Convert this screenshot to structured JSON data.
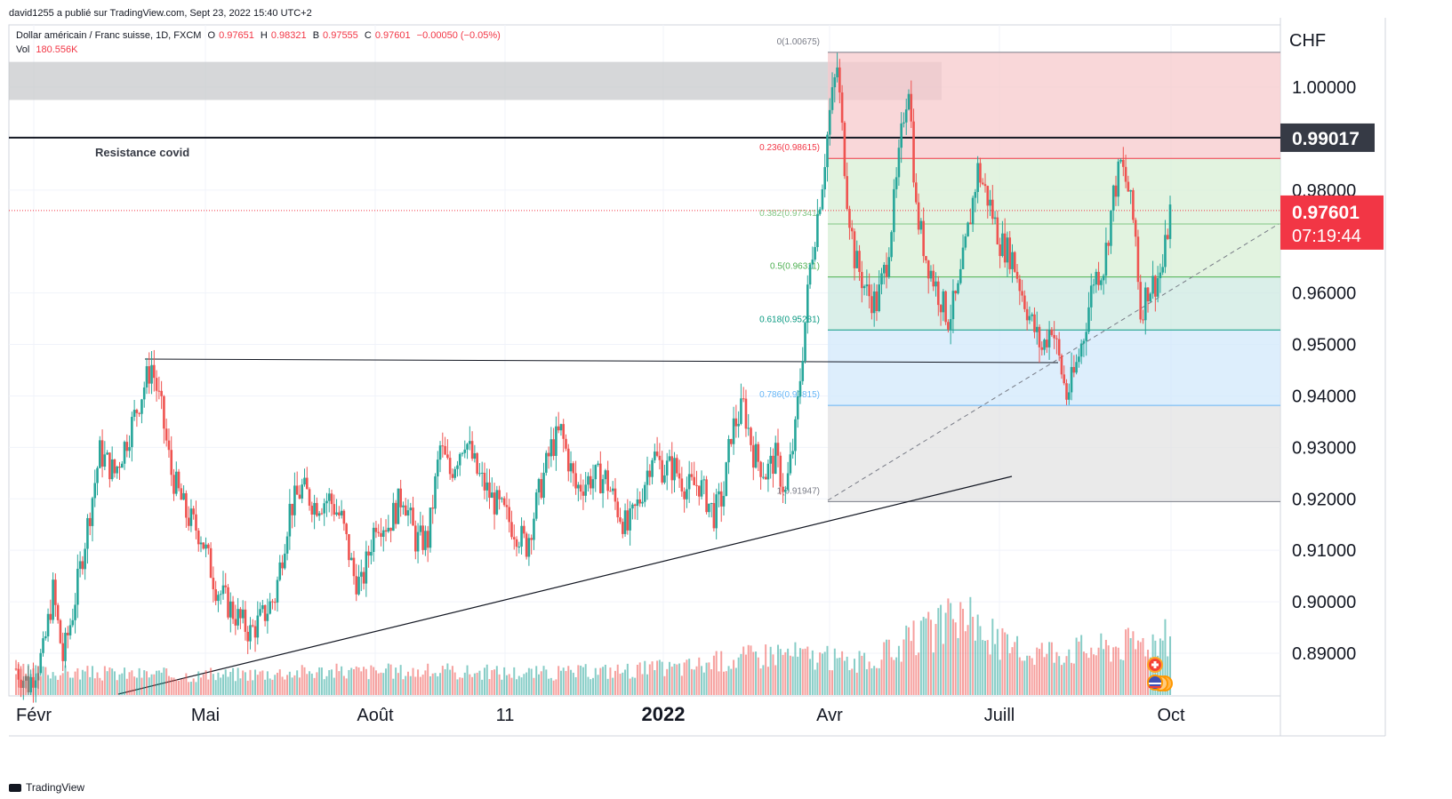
{
  "header": {
    "publish_line": "david1255 a publié sur TradingView.com, Sept 23, 2022 15:40 UTC+2",
    "symbol_line": "Dollar américain / Franc suisse, 1D, FXCM",
    "ohlc": {
      "o_label": "O",
      "o_value": "0.97651",
      "h_label": "H",
      "h_value": "0.98321",
      "b_label": "B",
      "b_value": "0.97555",
      "c_label": "C",
      "c_value": "0.97601",
      "change": "−0.00050 (−0.05%)"
    },
    "volume_label": "Vol",
    "volume_value": "180.556K"
  },
  "footer": {
    "brand": "TradingView"
  },
  "colors": {
    "up": "#26a69a",
    "down": "#ef5350",
    "fib_red_zone": "#f7c9cc",
    "fib_green_zone": "#d8efd6",
    "fib_teal_zone": "#cde9e1",
    "fib_blue_zone": "#d2e8fb",
    "fib_grey_zone": "#e3e3e3",
    "covid_box": "#c8c9cc",
    "price_tag": "#f23645",
    "resistance_tag": "#363a45"
  },
  "chart_data": {
    "type": "candlestick",
    "title": "Dollar américain / Franc suisse, 1D, FXCM",
    "currency": "CHF",
    "x_ticks": [
      "Févr",
      "Mai",
      "Août",
      "11",
      "2022",
      "Avr",
      "Juill",
      "Oct"
    ],
    "x_ticks_bold": [
      "2022"
    ],
    "y_ticks": [
      "1.00000",
      "0.98000",
      "0.96000",
      "0.95000",
      "0.94000",
      "0.93000",
      "0.92000",
      "0.91000",
      "0.90000",
      "0.89000"
    ],
    "ylim": [
      0.8835,
      1.009
    ],
    "grid": true,
    "last_price": "0.97601",
    "countdown": "07:19:44",
    "resistance": {
      "value": 0.99017,
      "label": "0.99017",
      "text": "Resistance covid"
    },
    "fibonacci": [
      {
        "level": "0",
        "price": 1.00675,
        "label": "0(1.00675)"
      },
      {
        "level": "0.236",
        "price": 0.98615,
        "label": "0.236(0.98615)"
      },
      {
        "level": "0.382",
        "price": 0.97341,
        "label": "0.382(0.97341)"
      },
      {
        "level": "0.5",
        "price": 0.96311,
        "label": "0.5(0.96311)"
      },
      {
        "level": "0.618",
        "price": 0.95281,
        "label": "0.618(0.95281)"
      },
      {
        "level": "0.786",
        "price": 0.93815,
        "label": "0.786(0.93815)"
      },
      {
        "level": "1",
        "price": 0.91947,
        "label": "1(0.91947)"
      }
    ],
    "path_points": [
      {
        "d": 0,
        "p": 0.887
      },
      {
        "d": 10,
        "p": 0.884
      },
      {
        "d": 22,
        "p": 0.89
      },
      {
        "d": 30,
        "p": 0.902
      },
      {
        "d": 38,
        "p": 0.889
      },
      {
        "d": 46,
        "p": 0.898
      },
      {
        "d": 56,
        "p": 0.912
      },
      {
        "d": 68,
        "p": 0.929
      },
      {
        "d": 80,
        "p": 0.925
      },
      {
        "d": 92,
        "p": 0.933
      },
      {
        "d": 104,
        "p": 0.942
      },
      {
        "d": 110,
        "p": 0.946
      },
      {
        "d": 118,
        "p": 0.937
      },
      {
        "d": 126,
        "p": 0.925
      },
      {
        "d": 138,
        "p": 0.917
      },
      {
        "d": 150,
        "p": 0.913
      },
      {
        "d": 162,
        "p": 0.903
      },
      {
        "d": 176,
        "p": 0.898
      },
      {
        "d": 190,
        "p": 0.894
      },
      {
        "d": 200,
        "p": 0.897
      },
      {
        "d": 210,
        "p": 0.901
      },
      {
        "d": 222,
        "p": 0.918
      },
      {
        "d": 232,
        "p": 0.922
      },
      {
        "d": 242,
        "p": 0.919
      },
      {
        "d": 254,
        "p": 0.92
      },
      {
        "d": 264,
        "p": 0.916
      },
      {
        "d": 274,
        "p": 0.905
      },
      {
        "d": 280,
        "p": 0.903
      },
      {
        "d": 292,
        "p": 0.916
      },
      {
        "d": 302,
        "p": 0.915
      },
      {
        "d": 314,
        "p": 0.921
      },
      {
        "d": 324,
        "p": 0.912
      },
      {
        "d": 334,
        "p": 0.912
      },
      {
        "d": 344,
        "p": 0.93
      },
      {
        "d": 352,
        "p": 0.925
      },
      {
        "d": 364,
        "p": 0.932
      },
      {
        "d": 374,
        "p": 0.925
      },
      {
        "d": 386,
        "p": 0.92
      },
      {
        "d": 396,
        "p": 0.917
      },
      {
        "d": 408,
        "p": 0.913
      },
      {
        "d": 414,
        "p": 0.911
      },
      {
        "d": 424,
        "p": 0.921
      },
      {
        "d": 434,
        "p": 0.93
      },
      {
        "d": 442,
        "p": 0.933
      },
      {
        "d": 454,
        "p": 0.922
      },
      {
        "d": 466,
        "p": 0.924
      },
      {
        "d": 478,
        "p": 0.924
      },
      {
        "d": 488,
        "p": 0.918
      },
      {
        "d": 496,
        "p": 0.914
      },
      {
        "d": 506,
        "p": 0.92
      },
      {
        "d": 516,
        "p": 0.929
      },
      {
        "d": 524,
        "p": 0.926
      },
      {
        "d": 534,
        "p": 0.926
      },
      {
        "d": 544,
        "p": 0.922
      },
      {
        "d": 554,
        "p": 0.923
      },
      {
        "d": 566,
        "p": 0.917
      },
      {
        "d": 574,
        "p": 0.921
      },
      {
        "d": 580,
        "p": 0.933
      },
      {
        "d": 590,
        "p": 0.938
      },
      {
        "d": 598,
        "p": 0.929
      },
      {
        "d": 608,
        "p": 0.925
      },
      {
        "d": 616,
        "p": 0.928
      },
      {
        "d": 624,
        "p": 0.921
      },
      {
        "d": 632,
        "p": 0.933
      },
      {
        "d": 644,
        "p": 0.965
      },
      {
        "d": 654,
        "p": 0.982
      },
      {
        "d": 660,
        "p": 0.995
      },
      {
        "d": 666,
        "p": 1.004
      },
      {
        "d": 674,
        "p": 0.979
      },
      {
        "d": 680,
        "p": 0.967
      },
      {
        "d": 690,
        "p": 0.96
      },
      {
        "d": 698,
        "p": 0.958
      },
      {
        "d": 706,
        "p": 0.966
      },
      {
        "d": 714,
        "p": 0.981
      },
      {
        "d": 720,
        "p": 0.995
      },
      {
        "d": 724,
        "p": 1.001
      },
      {
        "d": 730,
        "p": 0.976
      },
      {
        "d": 738,
        "p": 0.967
      },
      {
        "d": 748,
        "p": 0.96
      },
      {
        "d": 756,
        "p": 0.955
      },
      {
        "d": 764,
        "p": 0.96
      },
      {
        "d": 772,
        "p": 0.972
      },
      {
        "d": 780,
        "p": 0.984
      },
      {
        "d": 790,
        "p": 0.977
      },
      {
        "d": 798,
        "p": 0.97
      },
      {
        "d": 808,
        "p": 0.967
      },
      {
        "d": 816,
        "p": 0.96
      },
      {
        "d": 824,
        "p": 0.954
      },
      {
        "d": 832,
        "p": 0.949
      },
      {
        "d": 840,
        "p": 0.954
      },
      {
        "d": 846,
        "p": 0.947
      },
      {
        "d": 852,
        "p": 0.94
      },
      {
        "d": 858,
        "p": 0.944
      },
      {
        "d": 866,
        "p": 0.952
      },
      {
        "d": 874,
        "p": 0.963
      },
      {
        "d": 882,
        "p": 0.965
      },
      {
        "d": 890,
        "p": 0.979
      },
      {
        "d": 896,
        "p": 0.985
      },
      {
        "d": 902,
        "p": 0.98
      },
      {
        "d": 908,
        "p": 0.971
      },
      {
        "d": 912,
        "p": 0.956
      },
      {
        "d": 918,
        "p": 0.961
      },
      {
        "d": 924,
        "p": 0.962
      },
      {
        "d": 930,
        "p": 0.965
      },
      {
        "d": 936,
        "p": 0.976
      }
    ],
    "volume_peaks": [
      {
        "d": 0,
        "v": 0.3
      },
      {
        "d": 150,
        "v": 0.25
      },
      {
        "d": 240,
        "v": 0.3
      },
      {
        "d": 332,
        "v": 0.3
      },
      {
        "d": 440,
        "v": 0.28
      },
      {
        "d": 540,
        "v": 0.35
      },
      {
        "d": 618,
        "v": 0.55
      },
      {
        "d": 690,
        "v": 0.4
      },
      {
        "d": 766,
        "v": 1.0
      },
      {
        "d": 810,
        "v": 0.55
      },
      {
        "d": 880,
        "v": 0.6
      },
      {
        "d": 912,
        "v": 0.68
      },
      {
        "d": 936,
        "v": 0.72
      }
    ],
    "annotations": [
      "Resistance covid"
    ]
  }
}
